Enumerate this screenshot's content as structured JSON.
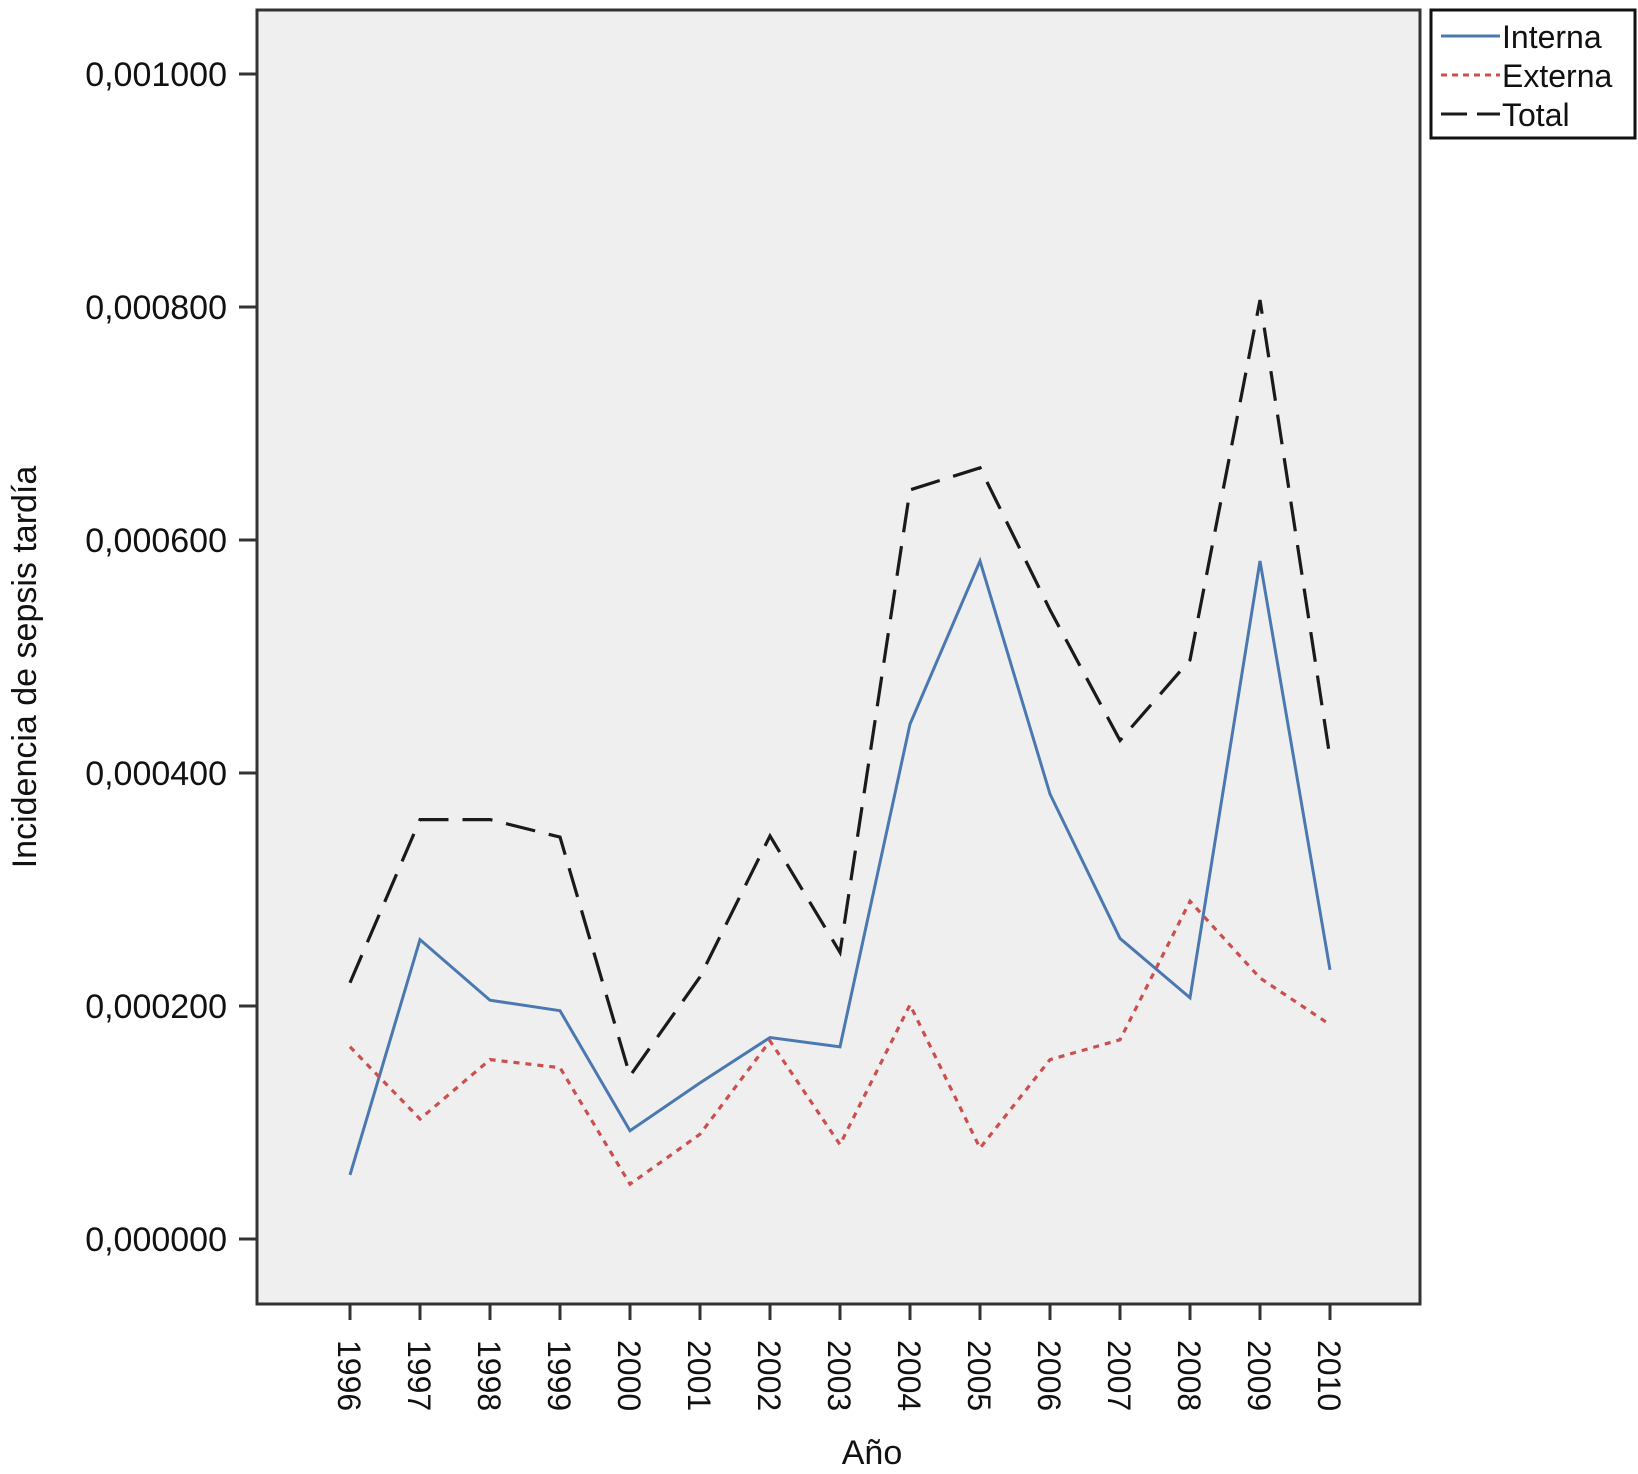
{
  "chart_data": {
    "type": "line",
    "xlabel": "Año",
    "ylabel": "Incidencia de sepsis tardía",
    "ylim": [
      -5e-05,
      0.00106
    ],
    "yticks": [
      "0,000000",
      "0,000200",
      "0,000400",
      "0,000600",
      "0,000800",
      "0,001000"
    ],
    "ytick_values": [
      0,
      0.0002,
      0.0004,
      0.0006,
      0.0008,
      0.001
    ],
    "categories": [
      "1996",
      "1997",
      "1998",
      "1999",
      "2000",
      "2001",
      "2002",
      "2003",
      "2004",
      "2005",
      "2006",
      "2007",
      "2008",
      "2009",
      "2010"
    ],
    "grid": false,
    "legend_position": "top-right-outside",
    "plot_background": "#efefef",
    "series": [
      {
        "name": "Interna",
        "color": "#4a78b0",
        "dash": "solid",
        "values": [
          5.5e-05,
          0.000257,
          0.000205,
          0.000196,
          9.3e-05,
          0.000134,
          0.000173,
          0.000165,
          0.000442,
          0.000582,
          0.000382,
          0.000258,
          0.000207,
          0.000582,
          0.000231
        ]
      },
      {
        "name": "Externa",
        "color": "#cc4f4f",
        "dash": "dotted",
        "values": [
          0.000165,
          0.000103,
          0.000154,
          0.000147,
          4.7e-05,
          9e-05,
          0.00017,
          8.1e-05,
          0.000201,
          7.8e-05,
          0.000154,
          0.000171,
          0.00029,
          0.000224,
          0.000184
        ]
      },
      {
        "name": "Total",
        "color": "#1a1a1a",
        "dash": "dashed",
        "values": [
          0.00022,
          0.00036,
          0.00036,
          0.000345,
          0.00014,
          0.000225,
          0.000346,
          0.000246,
          0.000643,
          0.000662,
          0.00054,
          0.000428,
          0.000497,
          0.000806,
          0.000413
        ]
      }
    ]
  }
}
